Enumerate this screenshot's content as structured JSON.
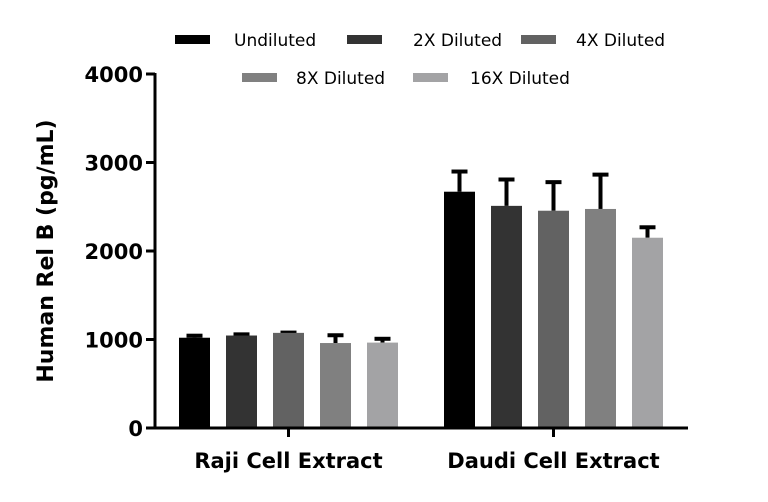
{
  "chart_data": {
    "type": "bar",
    "title": "",
    "xlabel": "",
    "ylabel": "Human  Rel B (pg/mL)",
    "ylim": [
      0,
      4000
    ],
    "yticks": [
      0,
      1000,
      2000,
      3000,
      4000
    ],
    "grid": false,
    "legend_position": "top",
    "categories": [
      "Raji Cell Extract",
      "Daudi Cell Extract"
    ],
    "series": [
      {
        "name": "Undiluted",
        "color": "#000000",
        "values": [
          1020,
          2670
        ],
        "error": [
          40,
          245
        ]
      },
      {
        "name": "2X Diluted",
        "color": "#333333",
        "values": [
          1045,
          2510
        ],
        "error": [
          30,
          315
        ]
      },
      {
        "name": "4X Diluted",
        "color": "#626262",
        "values": [
          1075,
          2455
        ],
        "error": [
          20,
          340
        ]
      },
      {
        "name": "8X Diluted",
        "color": "#808080",
        "values": [
          960,
          2475
        ],
        "error": [
          105,
          405
        ]
      },
      {
        "name": "16X Diluted",
        "color": "#a3a3a5",
        "values": [
          965,
          2150
        ],
        "error": [
          60,
          135
        ]
      }
    ]
  }
}
